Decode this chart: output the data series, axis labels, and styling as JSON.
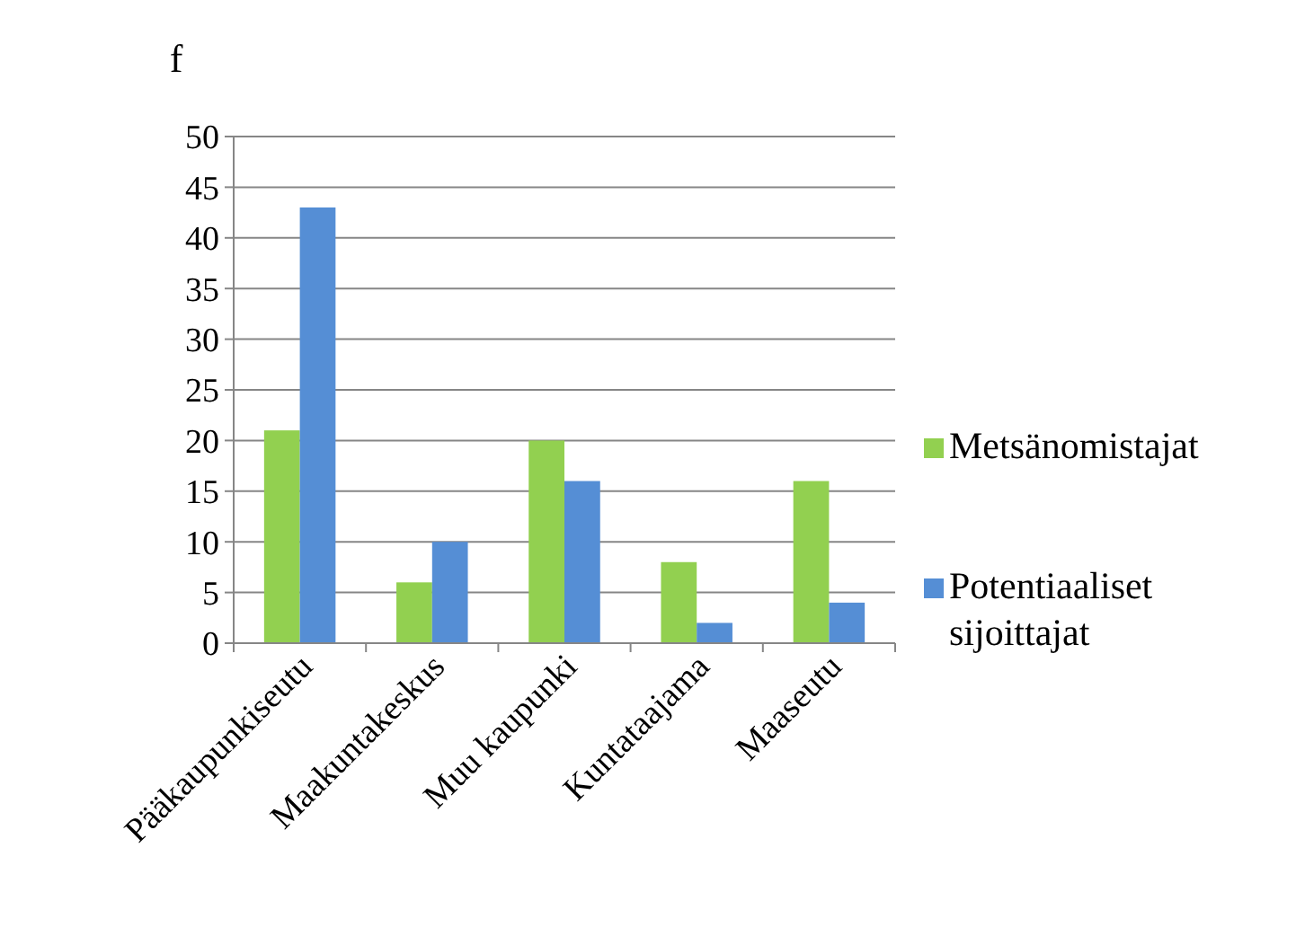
{
  "chart_data": {
    "type": "bar",
    "ylabel": "f",
    "categories": [
      "Pääkaupunkiseutu",
      "Maakuntakeskus",
      "Muu kaupunki",
      "Kuntataajama",
      "Maaseutu"
    ],
    "series": [
      {
        "name": "Metsänomistajat",
        "color": "#92d050",
        "values": [
          21,
          6,
          20,
          8,
          16
        ]
      },
      {
        "name": "Potentiaaliset sijoittajat",
        "color": "#558ed5",
        "values": [
          43,
          10,
          16,
          2,
          4
        ]
      }
    ],
    "ylim": [
      0,
      50
    ],
    "yticks": [
      0,
      5,
      10,
      15,
      20,
      25,
      30,
      35,
      40,
      45,
      50
    ],
    "grid": "y",
    "legend": "right"
  }
}
